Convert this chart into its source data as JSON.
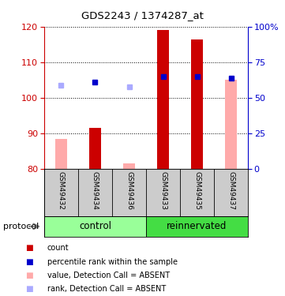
{
  "title": "GDS2243 / 1374287_at",
  "samples": [
    "GSM49432",
    "GSM49434",
    "GSM49436",
    "GSM49433",
    "GSM49435",
    "GSM49437"
  ],
  "ylim_left": [
    80,
    120
  ],
  "ylim_right": [
    0,
    100
  ],
  "yticks_left": [
    80,
    90,
    100,
    110,
    120
  ],
  "yticks_right": [
    0,
    25,
    50,
    75,
    100
  ],
  "ytick_labels_right": [
    "0",
    "25",
    "50",
    "75",
    "100%"
  ],
  "bar_values": [
    null,
    91.5,
    null,
    119,
    116.5,
    null
  ],
  "bar_absent_values": [
    88.5,
    null,
    81.5,
    null,
    null,
    105
  ],
  "rank_values": [
    null,
    104.5,
    null,
    106,
    106,
    105.5
  ],
  "rank_absent_values": [
    103.5,
    null,
    103,
    null,
    null,
    null
  ],
  "bar_color": "#cc0000",
  "bar_absent_color": "#ffaaaa",
  "rank_color": "#0000cc",
  "rank_absent_color": "#aaaaff",
  "bar_width": 0.35,
  "group_colors_control": "#99ff99",
  "group_colors_reinnervated": "#44dd44",
  "left_axis_color": "#cc0000",
  "right_axis_color": "#0000cc",
  "legend_items": [
    {
      "label": "count",
      "color": "#cc0000"
    },
    {
      "label": "percentile rank within the sample",
      "color": "#0000cc"
    },
    {
      "label": "value, Detection Call = ABSENT",
      "color": "#ffaaaa"
    },
    {
      "label": "rank, Detection Call = ABSENT",
      "color": "#aaaaff"
    }
  ],
  "protocol_label": "protocol"
}
